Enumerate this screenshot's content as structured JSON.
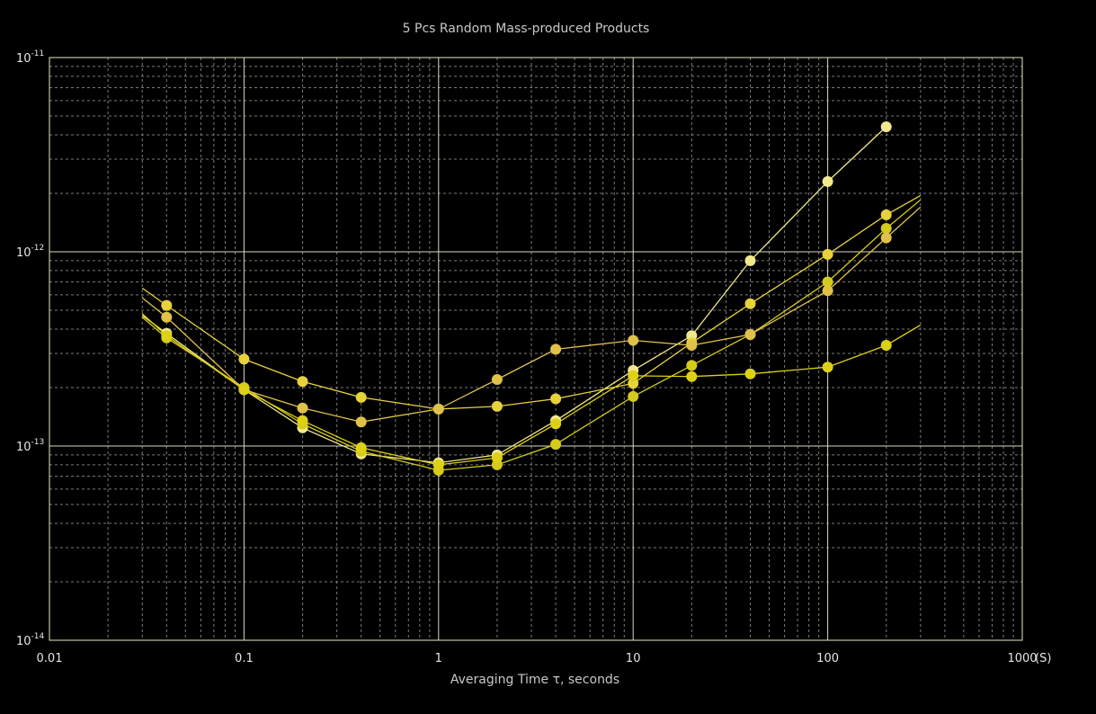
{
  "chart_data": {
    "type": "line",
    "title": "5 Pcs Random Mass-produced Products",
    "xlabel": "Averaging Time τ, seconds",
    "ylabel": "",
    "x_unit": "(S)",
    "x_scale": "log",
    "y_scale": "log",
    "xlim": [
      0.01,
      1000
    ],
    "ylim": [
      1e-14,
      1e-11
    ],
    "grid": true,
    "x_ticks": [
      {
        "value": 0.01,
        "label": "0.01"
      },
      {
        "value": 0.1,
        "label": "0.1"
      },
      {
        "value": 1,
        "label": "1"
      },
      {
        "value": 10,
        "label": "10"
      },
      {
        "value": 100,
        "label": "100"
      },
      {
        "value": 1000,
        "label": "1000"
      }
    ],
    "y_ticks": [
      {
        "value": 1e-14,
        "base": "10",
        "exp": "-14"
      },
      {
        "value": 1e-13,
        "base": "10",
        "exp": "-13"
      },
      {
        "value": 1e-12,
        "base": "10",
        "exp": "-12"
      },
      {
        "value": 1e-11,
        "base": "10",
        "exp": "-11"
      }
    ],
    "series": [
      {
        "color": "#f2e88c",
        "x": [
          0.03,
          0.04,
          0.1,
          0.2,
          0.4,
          1,
          2,
          4,
          10,
          20,
          40,
          100,
          200
        ],
        "y": [
          4.7e-13,
          3.8e-13,
          1.95e-13,
          1.24e-13,
          9.1e-14,
          8.2e-14,
          9e-14,
          1.35e-13,
          2.45e-13,
          3.7e-13,
          9e-13,
          2.3e-12,
          4.4e-12
        ],
        "markers": [
          false,
          true,
          true,
          true,
          true,
          true,
          true,
          true,
          true,
          true,
          true,
          true,
          true
        ]
      },
      {
        "color": "#e8d23c",
        "x": [
          0.03,
          0.04,
          0.1,
          0.2,
          0.4,
          1,
          2,
          4,
          10,
          20,
          40,
          100,
          200,
          300
        ],
        "y": [
          6.5e-13,
          5.3e-13,
          2.8e-13,
          2.15e-13,
          1.78e-13,
          1.55e-13,
          1.6e-13,
          1.75e-13,
          2.1e-13,
          3.4e-13,
          5.4e-13,
          9.7e-13,
          1.55e-12,
          1.95e-12
        ],
        "markers": [
          false,
          true,
          true,
          true,
          true,
          true,
          true,
          true,
          true,
          true,
          true,
          true,
          true,
          false
        ]
      },
      {
        "color": "#d4cb1c",
        "x": [
          0.03,
          0.04,
          0.1,
          0.2,
          0.4,
          1,
          2,
          4,
          10,
          20,
          40,
          100,
          200,
          300
        ],
        "y": [
          4.6e-13,
          3.6e-13,
          2e-13,
          1.3e-13,
          9.4e-14,
          7.5e-14,
          8e-14,
          1.02e-13,
          1.8e-13,
          2.6e-13,
          3.75e-13,
          7e-13,
          1.32e-12,
          1.85e-12
        ],
        "markers": [
          false,
          true,
          true,
          true,
          true,
          true,
          true,
          true,
          true,
          true,
          true,
          true,
          true,
          false
        ]
      },
      {
        "color": "#e0c24a",
        "x": [
          0.03,
          0.04,
          0.1,
          0.2,
          0.4,
          1,
          2,
          4,
          10,
          20,
          40,
          100,
          200,
          300
        ],
        "y": [
          5.8e-13,
          4.6e-13,
          1.95e-13,
          1.57e-13,
          1.33e-13,
          1.55e-13,
          2.2e-13,
          3.15e-13,
          3.5e-13,
          3.3e-13,
          3.75e-13,
          6.3e-13,
          1.18e-12,
          1.7e-12
        ],
        "markers": [
          false,
          true,
          true,
          true,
          true,
          true,
          true,
          true,
          true,
          true,
          true,
          true,
          true,
          false
        ]
      },
      {
        "color": "#ddd116",
        "x": [
          0.03,
          0.04,
          0.1,
          0.2,
          0.4,
          1,
          2,
          4,
          10,
          20,
          40,
          100,
          200,
          300
        ],
        "y": [
          4.8e-13,
          3.7e-13,
          1.95e-13,
          1.35e-13,
          9.8e-14,
          8e-14,
          8.7e-14,
          1.3e-13,
          2.3e-13,
          2.28e-13,
          2.35e-13,
          2.55e-13,
          3.3e-13,
          4.2e-13
        ],
        "markers": [
          false,
          true,
          true,
          true,
          true,
          true,
          true,
          true,
          true,
          true,
          true,
          true,
          true,
          false
        ]
      }
    ]
  }
}
